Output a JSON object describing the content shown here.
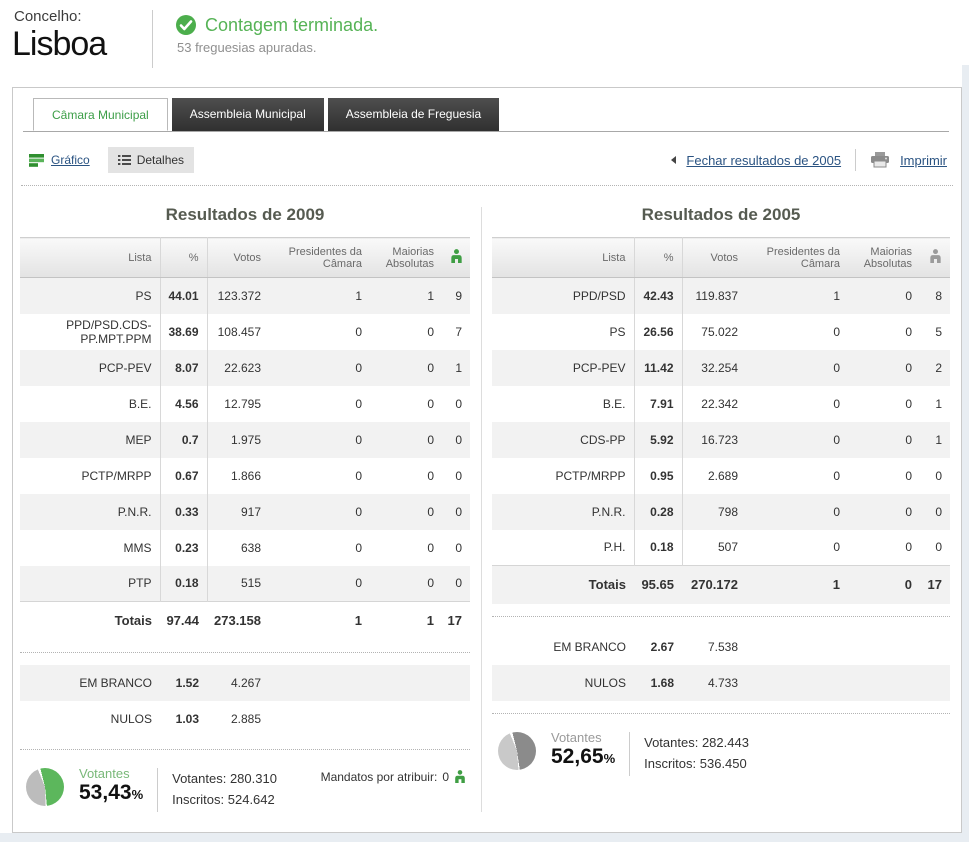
{
  "header": {
    "label": "Concelho:",
    "title": "Lisboa",
    "status": "Contagem terminada.",
    "substatus": "53 freguesias apuradas."
  },
  "tabs": [
    {
      "label": "Câmara Municipal",
      "active": true
    },
    {
      "label": "Assembleia Municipal",
      "active": false
    },
    {
      "label": "Assembleia de Freguesia",
      "active": false
    }
  ],
  "toolbar": {
    "grafico_label": "Gráfico",
    "detalhes_label": "Detalhes",
    "fechar_label": "Fechar resultados de 2005",
    "imprimir_label": "Imprimir"
  },
  "colors": {
    "accent_green": "#3f9e44",
    "status_green": "#56b356",
    "link_blue": "#2a5382",
    "title_gray": "#565b51",
    "row_shade": "#f2f2f2",
    "tab_dark": "#3a3a3a"
  },
  "columns": [
    {
      "title": "Resultados de 2009",
      "headers": {
        "lista": "Lista",
        "pct": "%",
        "votos": "Votos",
        "presidentes": "Presidentes da Câmara",
        "maiorias": "Maiorias Absolutas",
        "mandatos_icon": "person-icon"
      },
      "icon_color": "#3f9e44",
      "rows": [
        {
          "cells": [
            "PS",
            "44.01",
            "123.372",
            "1",
            "1",
            "9"
          ],
          "shade": true
        },
        {
          "cells": [
            "PPD/PSD.CDS-PP.MPT.PPM",
            "38.69",
            "108.457",
            "0",
            "0",
            "7"
          ],
          "shade": false
        },
        {
          "cells": [
            "PCP-PEV",
            "8.07",
            "22.623",
            "0",
            "0",
            "1"
          ],
          "shade": true
        },
        {
          "cells": [
            "B.E.",
            "4.56",
            "12.795",
            "0",
            "0",
            "0"
          ],
          "shade": false
        },
        {
          "cells": [
            "MEP",
            "0.7",
            "1.975",
            "0",
            "0",
            "0"
          ],
          "shade": true
        },
        {
          "cells": [
            "PCTP/MRPP",
            "0.67",
            "1.866",
            "0",
            "0",
            "0"
          ],
          "shade": false
        },
        {
          "cells": [
            "P.N.R.",
            "0.33",
            "917",
            "0",
            "0",
            "0"
          ],
          "shade": true
        },
        {
          "cells": [
            "MMS",
            "0.23",
            "638",
            "0",
            "0",
            "0"
          ],
          "shade": false
        },
        {
          "cells": [
            "PTP",
            "0.18",
            "515",
            "0",
            "0",
            "0"
          ],
          "shade": true
        }
      ],
      "totals": {
        "cells": [
          "Totais",
          "97.44",
          "273.158",
          "1",
          "1",
          "17"
        ],
        "shade": false
      },
      "extra_rows": [
        {
          "cells": [
            "EM BRANCO",
            "1.52",
            "4.267"
          ],
          "shade": true
        },
        {
          "cells": [
            "NULOS",
            "1.03",
            "2.885"
          ],
          "shade": false
        }
      ],
      "footer": {
        "votantes_label": "Votantes",
        "pct_display": "53,43",
        "pct_symbol": "%",
        "votantes_line": "Votantes: 280.310",
        "inscritos_line": "Inscritos: 524.642",
        "mandatos_label": "Mandatos por atribuir:",
        "mandatos_value": "0",
        "pie": {
          "percent": 53.43,
          "main": "#5cb75c",
          "rest": "#bcbcbc"
        }
      }
    },
    {
      "title": "Resultados de 2005",
      "headers": {
        "lista": "Lista",
        "pct": "%",
        "votos": "Votos",
        "presidentes": "Presidentes da Câmara",
        "maiorias": "Maiorias Absolutas",
        "mandatos_icon": "person-icon"
      },
      "icon_color": "#9b9b9b",
      "rows": [
        {
          "cells": [
            "PPD/PSD",
            "42.43",
            "119.837",
            "1",
            "0",
            "8"
          ],
          "shade": true
        },
        {
          "cells": [
            "PS",
            "26.56",
            "75.022",
            "0",
            "0",
            "5"
          ],
          "shade": false
        },
        {
          "cells": [
            "PCP-PEV",
            "11.42",
            "32.254",
            "0",
            "0",
            "2"
          ],
          "shade": true
        },
        {
          "cells": [
            "B.E.",
            "7.91",
            "22.342",
            "0",
            "0",
            "1"
          ],
          "shade": false
        },
        {
          "cells": [
            "CDS-PP",
            "5.92",
            "16.723",
            "0",
            "0",
            "1"
          ],
          "shade": true
        },
        {
          "cells": [
            "PCTP/MRPP",
            "0.95",
            "2.689",
            "0",
            "0",
            "0"
          ],
          "shade": false
        },
        {
          "cells": [
            "P.N.R.",
            "0.28",
            "798",
            "0",
            "0",
            "0"
          ],
          "shade": true
        },
        {
          "cells": [
            "P.H.",
            "0.18",
            "507",
            "0",
            "0",
            "0"
          ],
          "shade": false
        }
      ],
      "totals": {
        "cells": [
          "Totais",
          "95.65",
          "270.172",
          "1",
          "0",
          "17"
        ],
        "shade": true
      },
      "extra_rows": [
        {
          "cells": [
            "EM BRANCO",
            "2.67",
            "7.538"
          ],
          "shade": false
        },
        {
          "cells": [
            "NULOS",
            "1.68",
            "4.733"
          ],
          "shade": true
        }
      ],
      "footer": {
        "votantes_label": "Votantes",
        "pct_display": "52,65",
        "pct_symbol": "%",
        "votantes_line": "Votantes: 282.443",
        "inscritos_line": "Inscritos: 536.450",
        "pie": {
          "percent": 52.65,
          "main": "#8b8b8b",
          "rest": "#c9c9c9"
        }
      }
    }
  ]
}
